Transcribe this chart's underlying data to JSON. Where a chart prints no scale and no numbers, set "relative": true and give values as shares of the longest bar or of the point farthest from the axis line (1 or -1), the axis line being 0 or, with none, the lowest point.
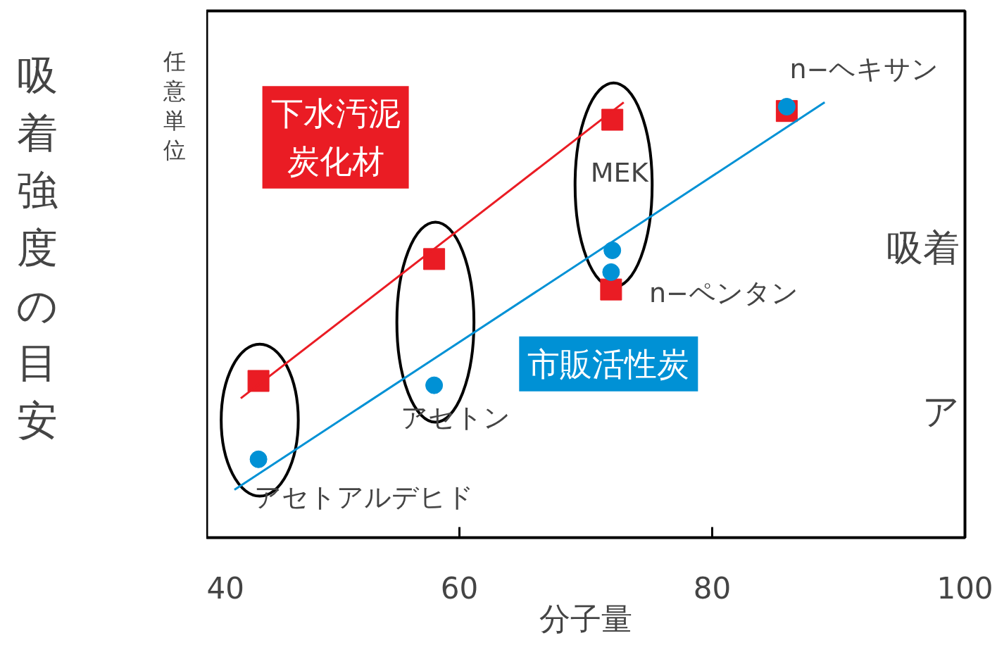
{
  "chart_data": {
    "type": "scatter",
    "relative": true,
    "xlabel": "分子量",
    "ylabel": "吸着強度の目安",
    "xlim": [
      40,
      100
    ],
    "xticks": [
      40,
      60,
      80,
      100
    ],
    "series": [
      {
        "name": "下水汚泥炭化材",
        "color": "#ea1c24",
        "marker": "square",
        "x": [
          44.1,
          58.0,
          72.1,
          72.0,
          85.9
        ],
        "values": [
          0.36,
          0.64,
          0.96,
          0.57,
          0.98
        ]
      },
      {
        "name": "市販活性炭",
        "color": "#0091d5",
        "marker": "circle",
        "x": [
          44.1,
          58.0,
          72.1,
          72.0,
          85.9
        ],
        "values": [
          0.18,
          0.35,
          0.66,
          0.61,
          0.99
        ]
      },
      {
        "type": "line",
        "color": "#ea1c24",
        "x": [
          42.7,
          73.0
        ],
        "values": [
          0.32,
          1.0
        ]
      },
      {
        "type": "line",
        "color": "#0091d5",
        "x": [
          42.2,
          88.9
        ],
        "values": [
          0.11,
          1.0
        ]
      }
    ],
    "annotations": [
      "任意単位",
      "吸着",
      "ア",
      "アセトアルデヒド",
      "アセトン",
      "MEK",
      "n−ペンタン",
      "n−ヘキサン"
    ]
  }
}
